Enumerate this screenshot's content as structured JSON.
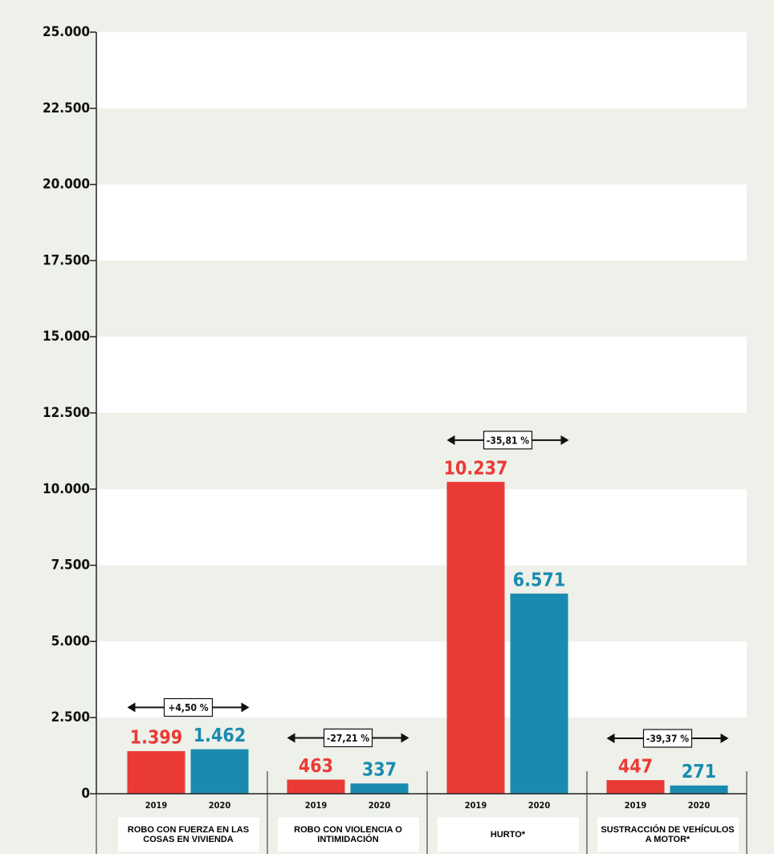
{
  "chart_data": {
    "type": "bar",
    "categories": [
      "ROBO CON FUERZA EN LAS COSAS EN VIVIENDA",
      "ROBO CON VIOLENCIA O INTIMIDACIÓN",
      "HURTO*",
      "SUSTRACCIÓN DE VEHÍCULOS A MOTOR*"
    ],
    "series": [
      {
        "name": "2019",
        "color": "#e93a35",
        "values": [
          1399,
          463,
          10237,
          447
        ],
        "value_labels": [
          "1.399",
          "463",
          "10.237",
          "447"
        ]
      },
      {
        "name": "2020",
        "color": "#1a8bb0",
        "values": [
          1462,
          337,
          6571,
          271
        ],
        "value_labels": [
          "1.462",
          "337",
          "6.571",
          "271"
        ]
      }
    ],
    "annotations": [
      "+4,50 %",
      "-27,21 %",
      "-35,81 %",
      "-39,37 %"
    ],
    "ylim": [
      0,
      25000
    ],
    "yticks": [
      0,
      {
        "value": 2500,
        "label": "2.500"
      },
      {
        "value": 5000,
        "label": "5.000"
      },
      {
        "value": 7500,
        "label": "7.500"
      },
      {
        "value": 10000,
        "label": "10.000"
      },
      {
        "value": 12500,
        "label": "12.500"
      },
      {
        "value": 15000,
        "label": "15.000"
      },
      {
        "value": 17500,
        "label": "17.500"
      },
      {
        "value": 20000,
        "label": "20.000"
      },
      {
        "value": 22500,
        "label": "22.500"
      },
      {
        "value": 25000,
        "label": "25.000"
      }
    ],
    "grid": true
  }
}
